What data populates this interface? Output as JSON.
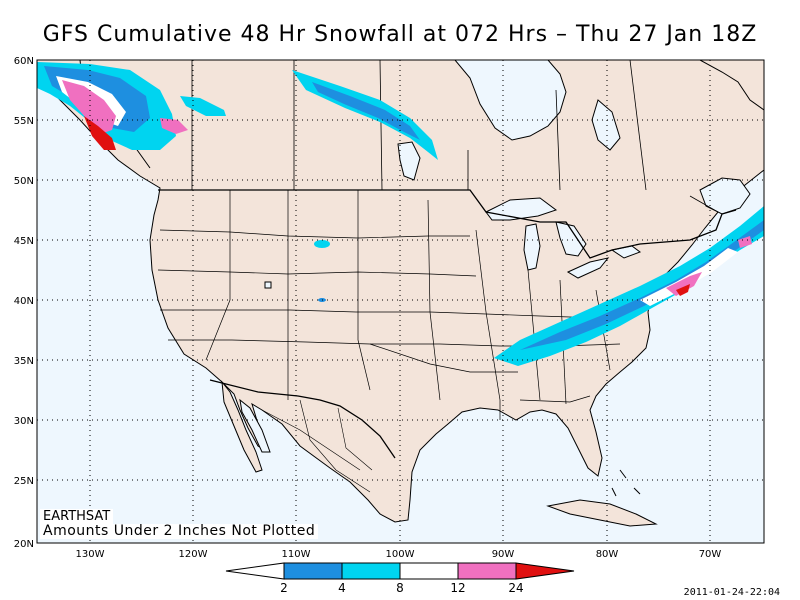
{
  "title": "GFS Cumulative 48 Hr Snowfall at 072 Hrs – Thu 27 Jan 18Z",
  "axes": {
    "lat_labels": [
      "60N",
      "55N",
      "50N",
      "45N",
      "40N",
      "35N",
      "30N",
      "25N",
      "20N"
    ],
    "lon_labels": [
      "130W",
      "120W",
      "110W",
      "100W",
      "90W",
      "80W",
      "70W"
    ]
  },
  "notes": {
    "source": "EARTHSAT",
    "caveat": "Amounts Under 2 Inches Not Plotted"
  },
  "legend": {
    "breaks": [
      "2",
      "4",
      "8",
      "12",
      "24"
    ],
    "colors": [
      "#ffffff",
      "#1e8fe0",
      "#00d4f0",
      "#ffffff",
      "#f070c0",
      "#e01010"
    ],
    "units": "inches"
  },
  "palette": {
    "land": "#f3e4da",
    "ocean": "#eef7fe"
  },
  "timestamp": "2011-01-24-22:04"
}
